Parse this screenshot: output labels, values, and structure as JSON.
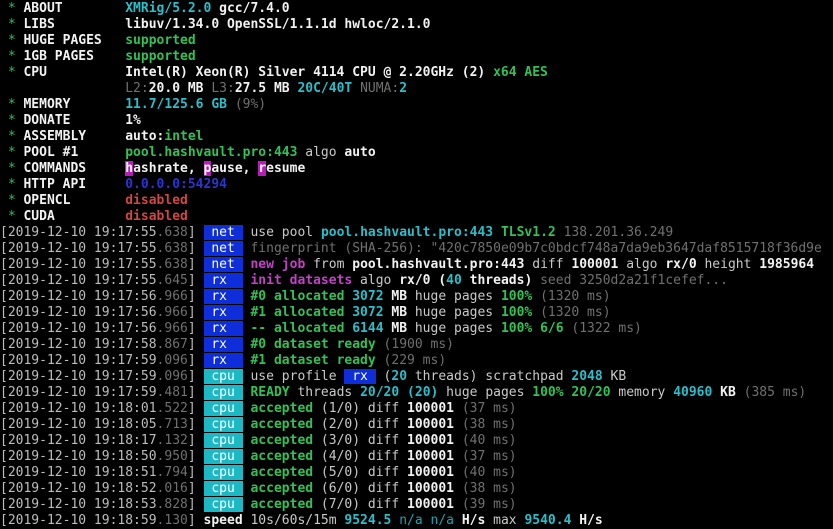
{
  "palette": {
    "bg": "#000000",
    "fg": "#c9c9c9",
    "fgb": "#f2f2f2",
    "green": "#33c156",
    "cyan": "#2bbfca",
    "cyan_dim": "#1ba3ad",
    "gray": "#707070",
    "ts": "#bdbdbd",
    "magenta": "#c341c6",
    "magenta_bg": "#bb1bbb",
    "red": "#cf4743",
    "blue": "#2c34d4",
    "badge_blue": "#0d2ed8",
    "badge_cyan": "#1cb8c4"
  },
  "terminal": {
    "date": "2019-12-10",
    "badges": {
      "net": "blue",
      "rx": "blue",
      "cpu": "cyan"
    },
    "config_rows": [
      {
        "label": "ABOUT",
        "segs": [
          [
            "c",
            "XMRig/5.2.0"
          ],
          [
            "wb",
            " gcc/7.4.0"
          ]
        ]
      },
      {
        "label": "LIBS",
        "segs": [
          [
            "wb",
            "libuv/1.34.0 OpenSSL/1.1.1d hwloc/2.1.0"
          ]
        ]
      },
      {
        "label": "HUGE PAGES",
        "segs": [
          [
            "g",
            "supported"
          ]
        ]
      },
      {
        "label": "1GB PAGES",
        "segs": [
          [
            "g",
            "supported"
          ]
        ]
      },
      {
        "label": "CPU",
        "segs": [
          [
            "wb",
            "Intel(R) Xeon(R) Silver 4114 CPU @ 2.20GHz (2) "
          ],
          [
            "g",
            "x64 AES"
          ]
        ]
      },
      {
        "label": null,
        "segs": [
          [
            "gy",
            "L2:"
          ],
          [
            "wb",
            "20.0 MB "
          ],
          [
            "gy",
            "L3:"
          ],
          [
            "wb",
            "27.5 MB "
          ],
          [
            "c",
            "20C/40T "
          ],
          [
            "gy",
            "NUMA:"
          ],
          [
            "c",
            "2"
          ]
        ]
      },
      {
        "label": "MEMORY",
        "segs": [
          [
            "c",
            "11.7/125.6 GB "
          ],
          [
            "gy",
            "(9%)"
          ]
        ]
      },
      {
        "label": "DONATE",
        "segs": [
          [
            "wb",
            "1%"
          ]
        ]
      },
      {
        "label": "ASSEMBLY",
        "segs": [
          [
            "wb",
            "auto:"
          ],
          [
            "g",
            "intel"
          ]
        ]
      },
      {
        "label": "POOL #1",
        "segs": [
          [
            "g",
            "pool.hashvault.pro:443"
          ],
          [
            "w",
            " algo "
          ],
          [
            "wb",
            "auto"
          ]
        ]
      },
      {
        "label": "COMMANDS",
        "segs": [
          [
            "hl",
            "h"
          ],
          [
            "wb",
            "ashrate, "
          ],
          [
            "hl",
            "p"
          ],
          [
            "wb",
            "ause, "
          ],
          [
            "hl",
            "r"
          ],
          [
            "wb",
            "esume"
          ]
        ]
      },
      {
        "label": "HTTP API",
        "segs": [
          [
            "bl",
            "0.0.0.0:54294"
          ]
        ]
      },
      {
        "label": "OPENCL",
        "segs": [
          [
            "r",
            "disabled"
          ]
        ]
      },
      {
        "label": "CUDA",
        "segs": [
          [
            "r",
            "disabled"
          ]
        ]
      }
    ],
    "log_lines": [
      {
        "time": "19:17:55",
        "ms": "638",
        "badge": "net",
        "segs": [
          [
            "w",
            "use pool "
          ],
          [
            "c",
            "pool.hashvault.pro:443 "
          ],
          [
            "g",
            "TLSv1.2 "
          ],
          [
            "gy",
            "138.201.36.249"
          ]
        ]
      },
      {
        "time": "19:17:55",
        "ms": "638",
        "badge": "net",
        "segs": [
          [
            "gy",
            "fingerprint (SHA-256): \"420c7850e09b7c0bdcf748a7da9eb3647daf8515718f36d9e"
          ]
        ]
      },
      {
        "time": "19:17:55",
        "ms": "638",
        "badge": "net",
        "segs": [
          [
            "m",
            "new job"
          ],
          [
            "w",
            " from "
          ],
          [
            "wb",
            "pool.hashvault.pro:443"
          ],
          [
            "w",
            " diff "
          ],
          [
            "wb",
            "100001"
          ],
          [
            "w",
            " algo "
          ],
          [
            "wb",
            "rx/0"
          ],
          [
            "w",
            " height "
          ],
          [
            "wb",
            "1985964"
          ]
        ]
      },
      {
        "time": "19:17:55",
        "ms": "645",
        "badge": "rx",
        "segs": [
          [
            "m",
            "init datasets"
          ],
          [
            "w",
            " algo "
          ],
          [
            "wb",
            "rx/0 ("
          ],
          [
            "c",
            "40"
          ],
          [
            "wb",
            " threads)"
          ],
          [
            "gy",
            " seed 3250d2a21f1cefef..."
          ]
        ]
      },
      {
        "time": "19:17:56",
        "ms": "966",
        "badge": "rx",
        "segs": [
          [
            "g",
            "#0 allocated "
          ],
          [
            "c",
            "3072 "
          ],
          [
            "wb",
            "MB"
          ],
          [
            "w",
            " huge pages "
          ],
          [
            "g",
            "100%"
          ],
          [
            "gy",
            " (1320 ms)"
          ]
        ]
      },
      {
        "time": "19:17:56",
        "ms": "966",
        "badge": "rx",
        "segs": [
          [
            "g",
            "#1 allocated "
          ],
          [
            "c",
            "3072 "
          ],
          [
            "wb",
            "MB"
          ],
          [
            "w",
            " huge pages "
          ],
          [
            "g",
            "100%"
          ],
          [
            "gy",
            " (1320 ms)"
          ]
        ]
      },
      {
        "time": "19:17:56",
        "ms": "966",
        "badge": "rx",
        "segs": [
          [
            "g",
            "-- allocated "
          ],
          [
            "c",
            "6144 "
          ],
          [
            "wb",
            "MB"
          ],
          [
            "w",
            " huge pages "
          ],
          [
            "g",
            "100% 6/6"
          ],
          [
            "gy",
            " (1322 ms)"
          ]
        ]
      },
      {
        "time": "19:17:58",
        "ms": "867",
        "badge": "rx",
        "segs": [
          [
            "g",
            "#0 dataset ready"
          ],
          [
            "gy",
            " (1900 ms)"
          ]
        ]
      },
      {
        "time": "19:17:59",
        "ms": "096",
        "badge": "rx",
        "segs": [
          [
            "g",
            "#1 dataset ready"
          ],
          [
            "gy",
            " (229 ms)"
          ]
        ]
      },
      {
        "time": "19:17:59",
        "ms": "096",
        "badge": "cpu",
        "segs": [
          [
            "w",
            "use profile "
          ],
          [
            "bb",
            " rx "
          ],
          [
            "w",
            " ("
          ],
          [
            "c",
            "20"
          ],
          [
            "w",
            " threads) scratchpad "
          ],
          [
            "c",
            "2048"
          ],
          [
            "w",
            " KB"
          ]
        ]
      },
      {
        "time": "19:17:59",
        "ms": "481",
        "badge": "cpu",
        "segs": [
          [
            "g",
            "READY"
          ],
          [
            "w",
            " threads "
          ],
          [
            "c",
            "20/20 (20)"
          ],
          [
            "w",
            " huge pages "
          ],
          [
            "g",
            "100% 20/20"
          ],
          [
            "w",
            " memory "
          ],
          [
            "c",
            "40960 "
          ],
          [
            "wb",
            "KB"
          ],
          [
            "gy",
            " (385 ms)"
          ]
        ]
      },
      {
        "time": "19:18:01",
        "ms": "522",
        "badge": "cpu",
        "segs": [
          [
            "g",
            "accepted"
          ],
          [
            "w",
            " (1/0) diff "
          ],
          [
            "wb",
            "100001"
          ],
          [
            "gy",
            " (37 ms)"
          ]
        ]
      },
      {
        "time": "19:18:05",
        "ms": "713",
        "badge": "cpu",
        "segs": [
          [
            "g",
            "accepted"
          ],
          [
            "w",
            " (2/0) diff "
          ],
          [
            "wb",
            "100001"
          ],
          [
            "gy",
            " (38 ms)"
          ]
        ]
      },
      {
        "time": "19:18:17",
        "ms": "132",
        "badge": "cpu",
        "segs": [
          [
            "g",
            "accepted"
          ],
          [
            "w",
            " (3/0) diff "
          ],
          [
            "wb",
            "100001"
          ],
          [
            "gy",
            " (40 ms)"
          ]
        ]
      },
      {
        "time": "19:18:50",
        "ms": "950",
        "badge": "cpu",
        "segs": [
          [
            "g",
            "accepted"
          ],
          [
            "w",
            " (4/0) diff "
          ],
          [
            "wb",
            "100001"
          ],
          [
            "gy",
            " (37 ms)"
          ]
        ]
      },
      {
        "time": "19:18:51",
        "ms": "794",
        "badge": "cpu",
        "segs": [
          [
            "g",
            "accepted"
          ],
          [
            "w",
            " (5/0) diff "
          ],
          [
            "wb",
            "100001"
          ],
          [
            "gy",
            " (40 ms)"
          ]
        ]
      },
      {
        "time": "19:18:52",
        "ms": "016",
        "badge": "cpu",
        "segs": [
          [
            "g",
            "accepted"
          ],
          [
            "w",
            " (6/0) diff "
          ],
          [
            "wb",
            "100001"
          ],
          [
            "gy",
            " (38 ms)"
          ]
        ]
      },
      {
        "time": "19:18:53",
        "ms": "828",
        "badge": "cpu",
        "segs": [
          [
            "g",
            "accepted"
          ],
          [
            "w",
            " (7/0) diff "
          ],
          [
            "wb",
            "100001"
          ],
          [
            "gy",
            " (39 ms)"
          ]
        ]
      },
      {
        "time": "19:18:59",
        "ms": "130",
        "badge": null,
        "segs": [
          [
            "wb",
            "speed "
          ],
          [
            "w",
            "10s/60s/15m "
          ],
          [
            "c",
            "9524.5 "
          ],
          [
            "cd",
            "n/a n/a "
          ],
          [
            "wb",
            "H/s"
          ],
          [
            "w",
            " max "
          ],
          [
            "c",
            "9540.4 "
          ],
          [
            "wb",
            "H/s"
          ]
        ]
      }
    ]
  }
}
